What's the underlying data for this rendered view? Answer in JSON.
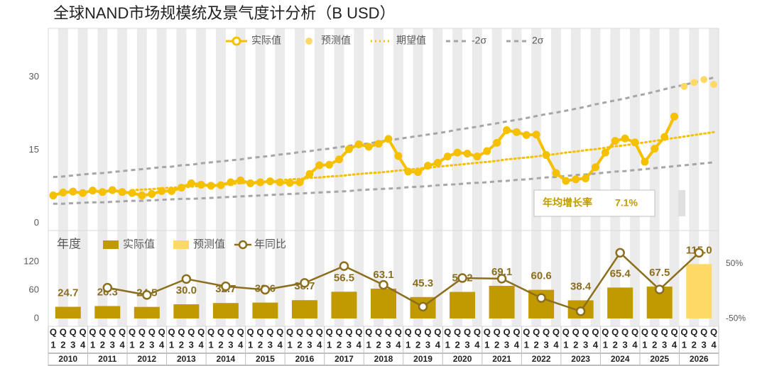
{
  "chart_data": [
    {
      "type": "line",
      "title": "全球NAND市场规模统及景气度计分析（B USD）",
      "ylim": [
        -1.5,
        40
      ],
      "yticks": [
        0,
        15,
        30
      ],
      "grid": false,
      "annotations": [
        "年均增长率",
        "7.1%"
      ],
      "series": [
        {
          "name": "实际值",
          "style": "line-marker",
          "color": "#F5C000",
          "values": [
            5.7,
            6.3,
            6.5,
            6.2,
            6.7,
            6.4,
            6.8,
            6.4,
            6.2,
            5.7,
            6.0,
            6.6,
            6.6,
            7.3,
            8.2,
            7.9,
            7.7,
            7.8,
            8.4,
            8.8,
            8.2,
            8.4,
            8.6,
            8.4,
            8.3,
            8.4,
            10.1,
            11.9,
            12.0,
            13.1,
            15.2,
            16.2,
            15.7,
            16.3,
            17.3,
            13.8,
            10.6,
            10.5,
            11.8,
            12.4,
            13.7,
            14.5,
            14.3,
            13.7,
            14.8,
            16.5,
            19.1,
            18.7,
            18.1,
            18.2,
            14.0,
            10.3,
            8.7,
            9.0,
            9.2,
            11.5,
            14.5,
            16.9,
            17.4,
            16.6,
            12.6,
            15.3,
            17.7,
            21.9,
            null,
            null,
            null,
            null
          ]
        },
        {
          "name": "预测值",
          "style": "dots",
          "color": "#FFD966",
          "values": [
            null,
            null,
            null,
            null,
            null,
            null,
            null,
            null,
            null,
            null,
            null,
            null,
            null,
            null,
            null,
            null,
            null,
            null,
            null,
            null,
            null,
            null,
            null,
            null,
            null,
            null,
            null,
            null,
            null,
            null,
            null,
            null,
            null,
            null,
            null,
            null,
            null,
            null,
            null,
            null,
            null,
            null,
            null,
            null,
            null,
            null,
            null,
            null,
            null,
            null,
            null,
            null,
            null,
            null,
            null,
            null,
            null,
            null,
            null,
            null,
            null,
            null,
            null,
            null,
            28.1,
            28.9,
            29.5,
            28.5
          ]
        },
        {
          "name": "期望值",
          "style": "dotted",
          "color": "#F5C000",
          "values": [
            null,
            null,
            null,
            null,
            null,
            null,
            null,
            null,
            6.8,
            6.9,
            7.0,
            7.2,
            7.3,
            7.4,
            7.5,
            7.7,
            7.8,
            7.9,
            8.1,
            8.2,
            8.4,
            8.5,
            8.6,
            8.8,
            9.0,
            9.1,
            9.3,
            9.4,
            9.6,
            9.7,
            9.9,
            10.1,
            10.3,
            10.4,
            10.6,
            10.8,
            11.0,
            11.2,
            11.4,
            11.6,
            11.8,
            12.0,
            12.2,
            12.4,
            12.6,
            12.8,
            13.1,
            13.3,
            13.5,
            13.7,
            14.0,
            14.2,
            14.5,
            14.7,
            15.0,
            15.2,
            15.5,
            15.8,
            16.0,
            16.3,
            16.6,
            16.9,
            17.2,
            17.5,
            17.8,
            18.1,
            18.4,
            18.7
          ]
        },
        {
          "name": "-2σ",
          "style": "dashed",
          "color": "#A6A6A6",
          "values": [
            4.0,
            4.0,
            4.1,
            4.2,
            4.3,
            4.3,
            4.4,
            4.5,
            4.6,
            4.6,
            4.7,
            4.8,
            4.9,
            5.0,
            5.0,
            5.1,
            5.2,
            5.3,
            5.4,
            5.5,
            5.6,
            5.7,
            5.8,
            5.9,
            6.0,
            6.1,
            6.2,
            6.3,
            6.4,
            6.5,
            6.6,
            6.8,
            6.9,
            7.0,
            7.1,
            7.2,
            7.4,
            7.5,
            7.6,
            7.8,
            7.9,
            8.0,
            8.2,
            8.3,
            8.4,
            8.6,
            8.7,
            8.9,
            9.0,
            9.2,
            9.4,
            9.5,
            9.7,
            9.9,
            10.0,
            10.2,
            10.4,
            10.6,
            10.7,
            10.9,
            11.1,
            11.3,
            11.5,
            11.7,
            11.9,
            12.1,
            12.3,
            12.5
          ]
        },
        {
          "name": "2σ",
          "style": "dashed",
          "color": "#A6A6A6",
          "values": [
            9.5,
            9.6,
            9.8,
            10.0,
            10.2,
            10.3,
            10.5,
            10.7,
            10.9,
            11.1,
            11.3,
            11.5,
            11.6,
            11.9,
            12.0,
            12.3,
            12.5,
            12.7,
            12.9,
            13.1,
            13.4,
            13.6,
            13.8,
            14.1,
            14.3,
            14.6,
            14.8,
            15.1,
            15.3,
            15.6,
            15.9,
            16.1,
            16.4,
            16.7,
            17.0,
            17.3,
            17.6,
            17.9,
            18.2,
            18.5,
            18.8,
            19.2,
            19.5,
            19.8,
            20.2,
            20.5,
            20.9,
            21.2,
            21.6,
            22.0,
            22.4,
            22.7,
            23.1,
            23.5,
            23.9,
            24.4,
            24.8,
            25.2,
            25.6,
            26.1,
            26.5,
            27.0,
            27.5,
            28.0,
            28.4,
            28.9,
            29.4,
            29.9
          ]
        }
      ]
    },
    {
      "type": "bar",
      "legend_title": "年度",
      "categories": [
        "2010",
        "2011",
        "2012",
        "2013",
        "2014",
        "2015",
        "2016",
        "2017",
        "2018",
        "2019",
        "2020",
        "2021",
        "2022",
        "2023",
        "2024",
        "2025",
        "2026"
      ],
      "quarter_prefix": "Q",
      "quarters": [
        "1",
        "2",
        "3",
        "4"
      ],
      "ylim": [
        -16.5,
        186
      ],
      "yticks": [
        0,
        60,
        120
      ],
      "y2lim": [
        -64,
        111
      ],
      "y2ticks": [
        {
          "value": 50,
          "label": "50%"
        },
        {
          "value": -50,
          "label": "-50%"
        }
      ],
      "series": [
        {
          "name": "实际值",
          "kind": "bar",
          "color": "#C09A00",
          "values": [
            24.7,
            26.3,
            24.5,
            30.0,
            32.7,
            33.6,
            38.7,
            56.5,
            63.1,
            45.3,
            56.2,
            69.1,
            60.6,
            38.4,
            65.4,
            67.5,
            null
          ],
          "value_labels": [
            "24.7",
            "26.3",
            "24.5",
            "30.0",
            "32.7",
            "33.6",
            "38.7",
            "56.5",
            "63.1",
            "45.3",
            "56.2",
            "69.1",
            "60.6",
            "38.4",
            "65.4",
            "67.5",
            null
          ]
        },
        {
          "name": "预测值",
          "kind": "bar",
          "color": "#FFD966",
          "values": [
            null,
            null,
            null,
            null,
            null,
            null,
            null,
            null,
            null,
            null,
            null,
            null,
            null,
            null,
            null,
            null,
            115.0
          ],
          "value_labels": [
            null,
            null,
            null,
            null,
            null,
            null,
            null,
            null,
            null,
            null,
            null,
            null,
            null,
            null,
            null,
            null,
            "115.0"
          ]
        },
        {
          "name": "年同比",
          "kind": "line",
          "axis": "y2",
          "color": "#8B6F1E",
          "values": [
            null,
            6.5,
            -6.8,
            22.4,
            9.0,
            2.8,
            15.2,
            46.0,
            11.7,
            -28.2,
            24.1,
            23.0,
            -12.3,
            -36.6,
            70.3,
            3.2,
            70.4
          ]
        }
      ]
    }
  ]
}
